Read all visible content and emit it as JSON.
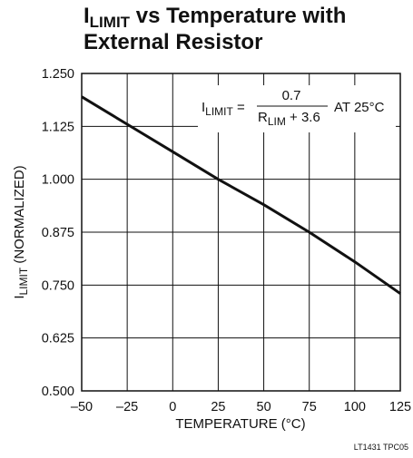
{
  "chart_data": {
    "type": "line",
    "title": {
      "main": "I",
      "main_sub": "LIMIT",
      "rest": " vs Temperature with",
      "line2": "External Resistor"
    },
    "xlabel": "TEMPERATURE (°C)",
    "ylabel": {
      "main": "I",
      "sub": "LIMIT",
      "rest": " (NORMALIZED)"
    },
    "xlim": [
      -50,
      125
    ],
    "ylim": [
      0.5,
      1.25
    ],
    "x_ticks": [
      -50,
      -25,
      0,
      25,
      50,
      75,
      100,
      125
    ],
    "x_tick_labels": [
      "–50",
      "–25",
      "0",
      "25",
      "50",
      "75",
      "100",
      "125"
    ],
    "y_ticks": [
      0.5,
      0.625,
      0.75,
      0.875,
      1.0,
      1.125,
      1.25
    ],
    "y_tick_labels": [
      "0.500",
      "0.625",
      "0.750",
      "0.875",
      "1.000",
      "1.125",
      "1.250"
    ],
    "grid": true,
    "series": [
      {
        "x": [
          -50,
          -25,
          0,
          25,
          50,
          75,
          100,
          125
        ],
        "y": [
          1.195,
          1.13,
          1.065,
          1.0,
          0.94,
          0.875,
          0.805,
          0.73
        ]
      }
    ],
    "annotation": {
      "lhs_main": "I",
      "lhs_sub": "LIMIT",
      "equals": " = ",
      "numerator": "0.7",
      "den_main": "R",
      "den_sub": "LIM",
      "den_rest": " + 3.6",
      "suffix": "AT 25°C"
    },
    "figure_code": "LT1431 TPC05"
  }
}
